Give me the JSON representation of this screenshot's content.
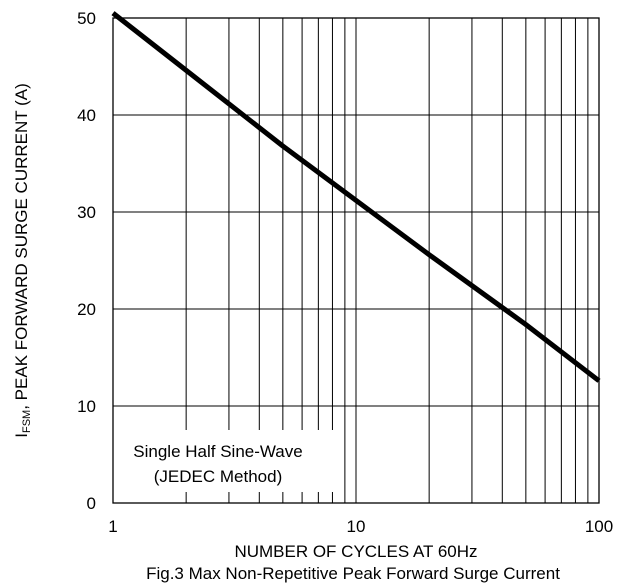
{
  "chart_data": {
    "type": "line",
    "title": "Fig.3 Max Non-Repetitive Peak Forward Surge Current",
    "xlabel": "NUMBER OF CYCLES AT 60Hz",
    "ylabel": {
      "prefix": "I",
      "subscript": "FSM",
      "suffix": ", PEAK FORWARD SURGE CURRENT (A)"
    },
    "x_scale": "log",
    "xlim": [
      1,
      100
    ],
    "ylim": [
      0,
      50
    ],
    "x_ticks": [
      {
        "value": 1,
        "label": "1"
      },
      {
        "value": 10,
        "label": "10"
      },
      {
        "value": 100,
        "label": "100"
      }
    ],
    "y_ticks": [
      {
        "value": 0,
        "label": "0"
      },
      {
        "value": 10,
        "label": "10"
      },
      {
        "value": 20,
        "label": "20"
      },
      {
        "value": 30,
        "label": "30"
      },
      {
        "value": 40,
        "label": "40"
      },
      {
        "value": 50,
        "label": "50"
      }
    ],
    "grid": true,
    "series": [
      {
        "x": [
          1,
          2,
          5,
          10,
          20,
          50,
          100
        ],
        "y": [
          50.5,
          44.6,
          36.8,
          31.2,
          25.6,
          18.4,
          12.6
        ]
      }
    ],
    "annotations": [
      "Single Half Sine-Wave",
      "(JEDEC Method)"
    ]
  }
}
